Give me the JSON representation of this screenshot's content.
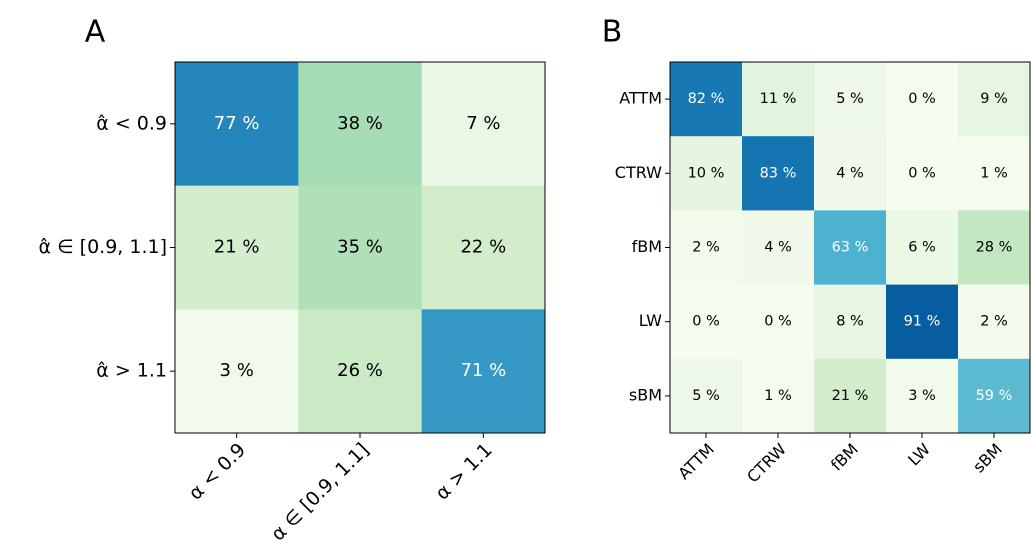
{
  "chart_data": [
    {
      "type": "heatmap",
      "title": "A",
      "colormap": "GnBu",
      "clim": [
        0,
        100
      ],
      "rows": [
        "α̂ < 0.9",
        "α̂ ∈ [0.9, 1.1]",
        "α̂ > 1.1"
      ],
      "columns": [
        "α < 0.9",
        "α ∈ [0.9, 1.1]",
        "α > 1.1"
      ],
      "values": [
        [
          77,
          38,
          7
        ],
        [
          21,
          35,
          22
        ],
        [
          3,
          26,
          71
        ]
      ],
      "value_labels": [
        [
          "77 %",
          "38 %",
          "7 %"
        ],
        [
          "21 %",
          "35 %",
          "22 %"
        ],
        [
          "3 %",
          "26 %",
          "71 %"
        ]
      ]
    },
    {
      "type": "heatmap",
      "title": "B",
      "colormap": "GnBu",
      "clim": [
        0,
        100
      ],
      "rows": [
        "ATTM",
        "CTRW",
        "fBM",
        "LW",
        "sBM"
      ],
      "columns": [
        "ATTM",
        "CTRW",
        "fBM",
        "LW",
        "sBM"
      ],
      "values": [
        [
          82,
          11,
          5,
          0,
          9
        ],
        [
          10,
          83,
          4,
          0,
          1
        ],
        [
          2,
          4,
          63,
          6,
          28
        ],
        [
          0,
          0,
          8,
          91,
          2
        ],
        [
          5,
          1,
          21,
          3,
          59
        ]
      ],
      "value_labels": [
        [
          "82 %",
          "11 %",
          "5 %",
          "0 %",
          "9 %"
        ],
        [
          "10 %",
          "83 %",
          "4 %",
          "0 %",
          "1 %"
        ],
        [
          "2 %",
          "4 %",
          "63 %",
          "6 %",
          "28 %"
        ],
        [
          "0 %",
          "0 %",
          "8 %",
          "91 %",
          "2 %"
        ],
        [
          "5 %",
          "1 %",
          "21 %",
          "3 %",
          "59 %"
        ]
      ]
    }
  ]
}
